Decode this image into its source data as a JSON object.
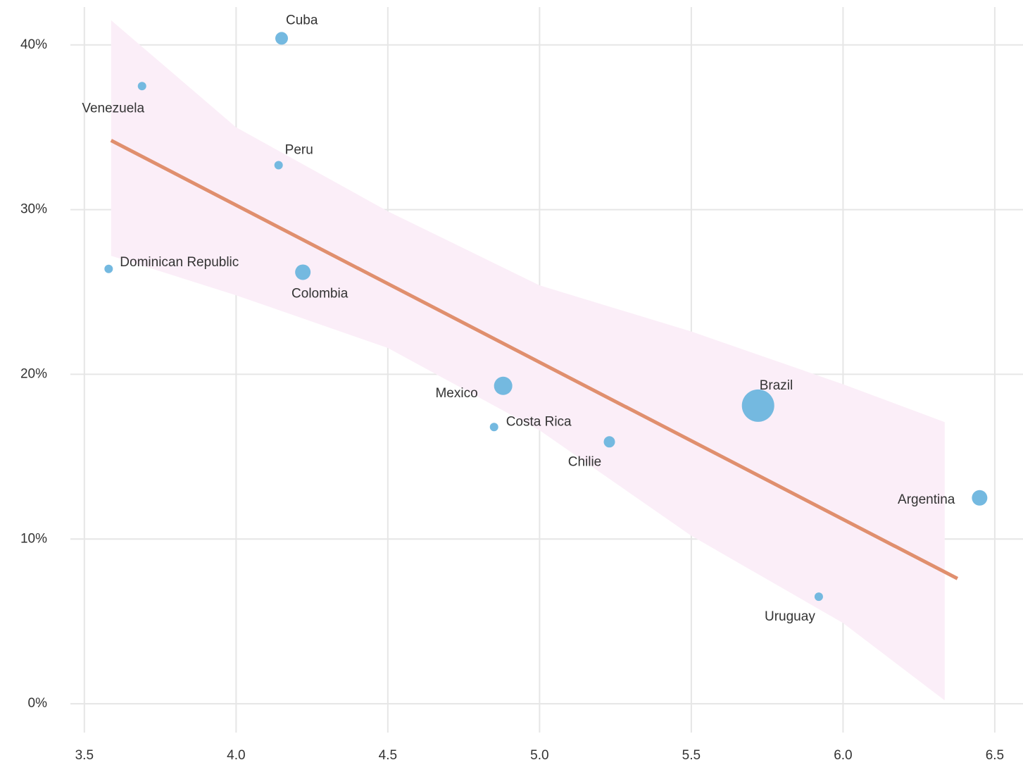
{
  "chart_data": {
    "type": "scatter",
    "labels": [
      "Cuba",
      "Venezuela",
      "Peru",
      "Dominican Republic",
      "Colombia",
      "Mexico",
      "Costa Rica",
      "Chilie",
      "Brazil",
      "Argentina",
      "Uruguay"
    ],
    "x": [
      4.15,
      3.69,
      4.14,
      3.58,
      4.22,
      4.88,
      4.85,
      5.23,
      5.72,
      6.45,
      5.92
    ],
    "values": [
      40.4,
      37.5,
      32.7,
      26.4,
      26.2,
      19.3,
      16.8,
      15.9,
      18.1,
      12.5,
      6.5
    ],
    "sizes": [
      81,
      36,
      36,
      36,
      121,
      169,
      36,
      64,
      529,
      121,
      36
    ],
    "color": "#74b9e0",
    "trend": {
      "x": [
        3.588,
        6.377
      ],
      "values": [
        34.2,
        7.6
      ],
      "color": "#e08f6e"
    },
    "band": {
      "x": [
        3.588,
        4.0,
        4.5,
        5.0,
        5.5,
        6.0,
        6.335
      ],
      "upper": [
        41.5,
        35.0,
        29.9,
        25.4,
        22.6,
        19.4,
        17.1
      ],
      "lower": [
        27.2,
        24.8,
        21.6,
        16.6,
        10.2,
        4.9,
        0.2
      ],
      "color": "#fbeef8"
    },
    "xlim": [
      3.454,
      6.593
    ],
    "ylim": [
      -1.75,
      42.3
    ],
    "xticks": [
      3.5,
      {
        "value": 4,
        "label": "4.0"
      },
      4.5,
      {
        "value": 5,
        "label": "5.0"
      },
      5.5,
      {
        "value": 6,
        "label": "6.0"
      },
      6.5
    ],
    "yticks": [
      {
        "value": 0,
        "label": "0%"
      },
      {
        "value": 10,
        "label": "10%"
      },
      {
        "value": 20,
        "label": "20%"
      },
      {
        "value": 30,
        "label": "30%"
      },
      {
        "value": 40,
        "label": "40%"
      }
    ],
    "grid": true
  }
}
